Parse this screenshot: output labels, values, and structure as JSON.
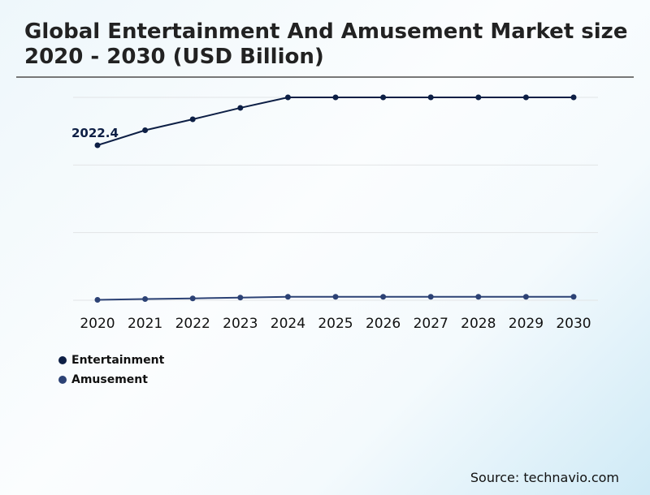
{
  "title": "Global Entertainment And Amusement Market size 2020 - 2030 (USD Billion)",
  "source": "Source: technavio.com",
  "chart_data": {
    "type": "line",
    "title": "Global Entertainment And Amusement Market size 2020 - 2030 (USD Billion)",
    "categories": [
      "2020",
      "2021",
      "2022",
      "2023",
      "2024",
      "2025",
      "2026",
      "2027",
      "2028",
      "2029",
      "2030"
    ],
    "series": [
      {
        "name": "Entertainment",
        "color": "#0d1f45",
        "values": [
          2022.4,
          2218,
          2361,
          2510,
          2647,
          2647,
          2647,
          2647,
          2647,
          2647,
          2647
        ]
      },
      {
        "name": "Amusement",
        "color": "#2c4275",
        "values": [
          5,
          16,
          24,
          35,
          45,
          45,
          45,
          45,
          45,
          45,
          45
        ]
      }
    ],
    "annotations": [
      {
        "series": "Entertainment",
        "category": "2020",
        "text": "2022.4"
      }
    ],
    "ylim": [
      0,
      2647
    ],
    "grid": true,
    "legend": "bottom-left",
    "xlabel": "",
    "ylabel": ""
  }
}
